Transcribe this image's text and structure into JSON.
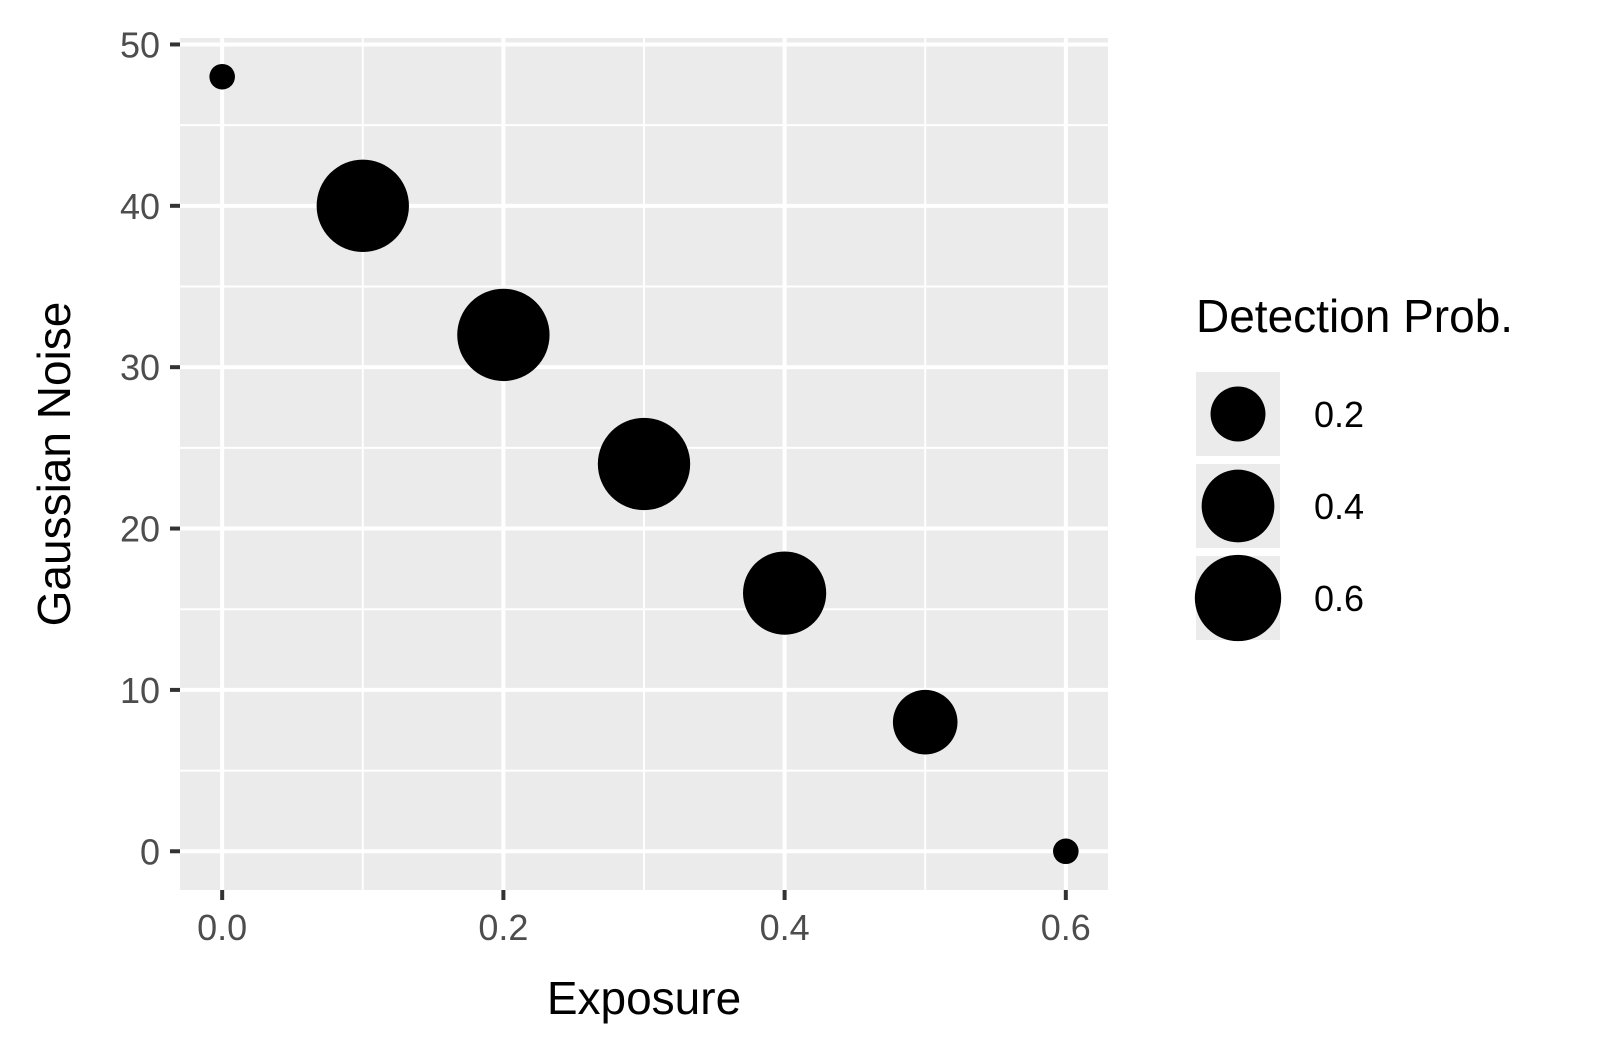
{
  "chart_data": {
    "type": "scatter",
    "title": "",
    "xlabel": "Exposure",
    "ylabel": "Gaussian Noise",
    "xlim": [
      -0.03,
      0.63
    ],
    "ylim": [
      -2.4,
      50.4
    ],
    "x_ticks": [
      "0.0",
      "0.2",
      "0.4",
      "0.6"
    ],
    "x_tick_values": [
      0.0,
      0.2,
      0.4,
      0.6
    ],
    "y_ticks": [
      "0",
      "10",
      "20",
      "30",
      "40",
      "50"
    ],
    "y_tick_values": [
      0,
      10,
      20,
      30,
      40,
      50
    ],
    "grid": true,
    "size_variable": "Detection Prob.",
    "points": [
      {
        "x": 0.0,
        "y": 48,
        "size": 0.02
      },
      {
        "x": 0.1,
        "y": 40,
        "size": 0.7
      },
      {
        "x": 0.2,
        "y": 32,
        "size": 0.7
      },
      {
        "x": 0.3,
        "y": 24,
        "size": 0.7
      },
      {
        "x": 0.4,
        "y": 16,
        "size": 0.55
      },
      {
        "x": 0.5,
        "y": 8,
        "size": 0.3
      },
      {
        "x": 0.6,
        "y": 0,
        "size": 0.02
      }
    ],
    "legend": {
      "title": "Detection Prob.",
      "placement": "right",
      "entries": [
        {
          "label": "0.2",
          "value": 0.2
        },
        {
          "label": "0.4",
          "value": 0.4
        },
        {
          "label": "0.6",
          "value": 0.6
        }
      ]
    },
    "colors": {
      "panel_background": "#ebebeb",
      "grid": "#ffffff",
      "points": "#000000"
    }
  }
}
